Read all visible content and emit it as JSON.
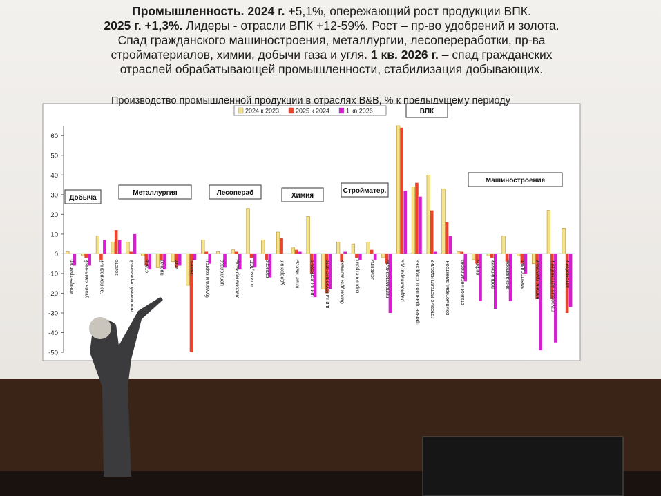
{
  "title_lines": [
    [
      {
        "text": "Промышленность. 2024 г. ",
        "bold": true
      },
      {
        "text": "+5,1%, опережающий рост продукции ВПК.",
        "bold": false
      }
    ],
    [
      {
        "text": "2025 г. +1,3%.",
        "bold": true
      },
      {
        "text": " Лидеры - отрасли ВПК +12-59%. Рост – пр-во удобрений и золота.",
        "bold": false
      }
    ],
    [
      {
        "text": "Спад гражданского машиностроения, металлургии, лесопереработки, пр-ва",
        "bold": false
      }
    ],
    [
      {
        "text": "стройматериалов, химии, добычи газа и угля. ",
        "bold": false
      },
      {
        "text": "1 кв. 2026 г.",
        "bold": true
      },
      {
        "text": " – спад гражданских",
        "bold": false
      }
    ],
    [
      {
        "text": "отраслей обрабатывающей промышленности, стабилизация добывающих.",
        "bold": false
      }
    ]
  ],
  "chart_data": {
    "type": "bar",
    "title": "Производство промышленной продукции в отраслях B&B, % к предыдущему периоду",
    "categories": [
      "концентрат жр",
      "уголь каменный",
      "газ природный",
      "золото",
      "алюминий первичный",
      "сталь",
      "прокат",
      "кокс",
      "свинец",
      "бумага и картон",
      "целлюлоза",
      "лесоматериалы",
      "плиты ДСП",
      "фанера",
      "удобрения",
      "пластмассы",
      "шины легковые",
      "шины грузовые авто",
      "бетон для заливки",
      "кирпич строит",
      "цементы",
      "пиломатериалы",
      "радиоаппаратура",
      "прочие транспорт средства",
      "готовые металл изделия",
      "компьютеры, электрон.",
      "станки металлорез",
      "лифты",
      "подшипники",
      "экскаваторы",
      "электродвиг.",
      "вагоны грузовые",
      "грузовые автомобили",
      "автомобили"
    ],
    "series": [
      {
        "name": "2024 к 2023",
        "color": "#f2e38c",
        "values": [
          1,
          -1,
          9,
          6,
          6,
          -1,
          -7,
          -4,
          -16,
          7,
          1,
          2,
          23,
          7,
          11,
          3,
          19,
          -18,
          6,
          5,
          6,
          -2,
          65,
          34,
          40,
          33,
          1,
          -3,
          -1,
          9,
          -1,
          -5,
          22,
          13
        ]
      },
      {
        "name": "2025 к 2024",
        "color": "#e8452c",
        "values": [
          0,
          -2,
          -3,
          12,
          1,
          -6,
          -3,
          -7,
          -50,
          1,
          0,
          1,
          -2,
          -3,
          8,
          2,
          -10,
          -20,
          -4,
          -2,
          2,
          -5,
          64,
          36,
          22,
          16,
          1,
          -5,
          -2,
          -4,
          -5,
          -23,
          -23,
          -30
        ]
      },
      {
        "name": "1 кв 2026",
        "color": "#d61fcf",
        "values": [
          -6,
          -6,
          7,
          7,
          10,
          -8,
          -8,
          -6,
          -3,
          -5,
          -7,
          -8,
          -7,
          -12,
          0,
          1,
          -22,
          -18,
          1,
          -3,
          -3,
          -30,
          32,
          29,
          1,
          9,
          -14,
          -24,
          -28,
          -24,
          -10,
          -49,
          -45,
          -27
        ]
      }
    ],
    "ylim": [
      -50,
      65
    ],
    "yticks": [
      -50,
      -40,
      -30,
      -20,
      -10,
      0,
      10,
      20,
      30,
      40,
      50,
      60
    ],
    "annotations": [
      "Добыча",
      "Металлургия",
      "Лесопераб",
      "Химия",
      "Стройматер.",
      "ВПК",
      "Машиностроение"
    ],
    "legend": "top"
  }
}
